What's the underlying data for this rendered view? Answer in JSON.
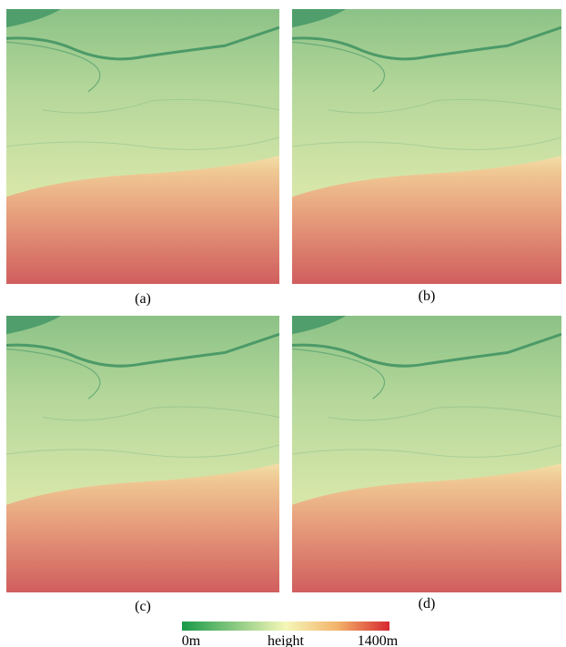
{
  "panels": [
    {
      "label": "(a)"
    },
    {
      "label": "(b)"
    },
    {
      "label": "(c)"
    },
    {
      "label": "(d)"
    }
  ],
  "colorbar": {
    "min_label": "0m",
    "title": "height",
    "max_label": "1400m"
  }
}
